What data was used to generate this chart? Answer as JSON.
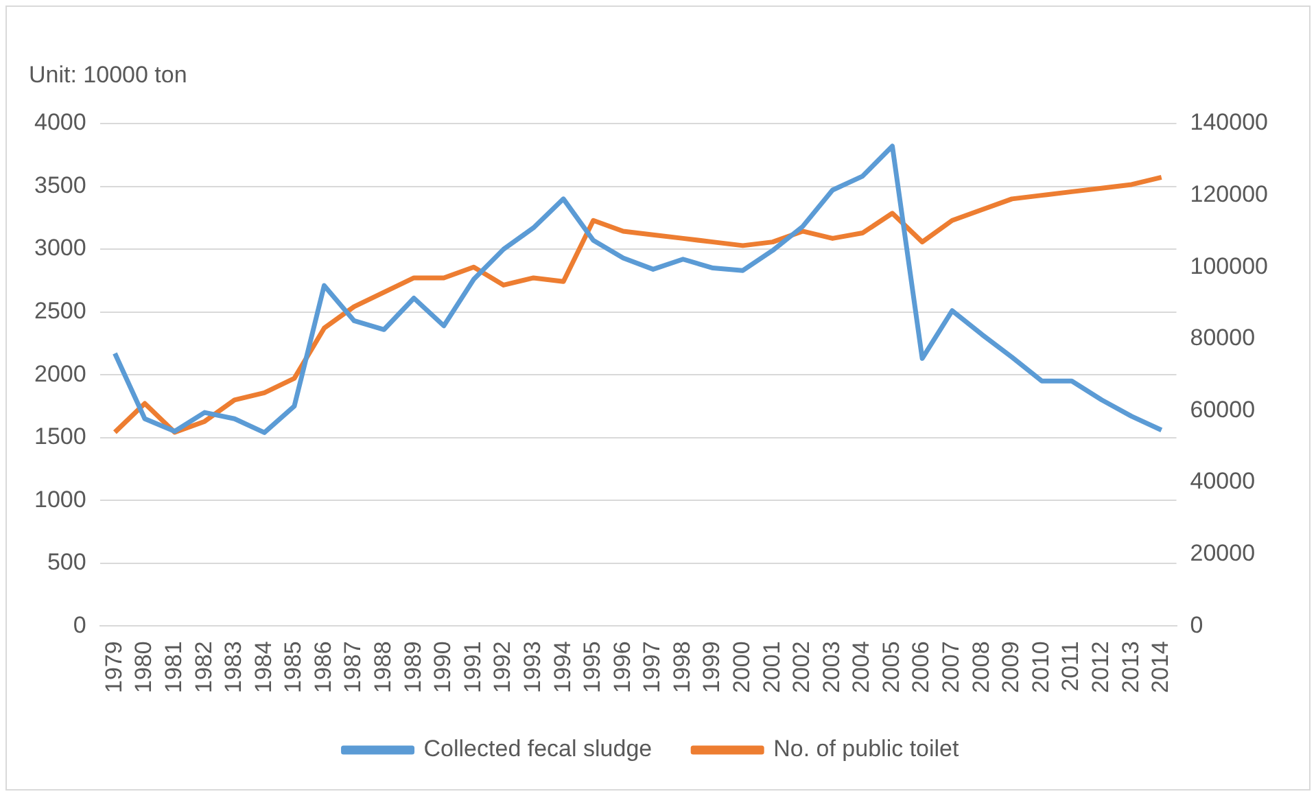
{
  "chart_data": {
    "type": "line",
    "ylabel": "Unit: 10000 ton",
    "categories": [
      "1979",
      "1980",
      "1981",
      "1982",
      "1983",
      "1984",
      "1985",
      "1986",
      "1987",
      "1988",
      "1989",
      "1990",
      "1991",
      "1992",
      "1993",
      "1994",
      "1995",
      "1996",
      "1997",
      "1998",
      "1999",
      "2000",
      "2001",
      "2002",
      "2003",
      "2004",
      "2005",
      "2006",
      "2007",
      "2008",
      "2009",
      "2010",
      "2011",
      "2012",
      "2013",
      "2014"
    ],
    "series": [
      {
        "name": "Collected fecal sludge",
        "color": "#5b9bd5",
        "values": [
          2170,
          1650,
          1550,
          1700,
          1650,
          1540,
          1750,
          2710,
          2430,
          2360,
          2610,
          2390,
          2760,
          3000,
          3170,
          3400,
          3070,
          2930,
          2840,
          2920,
          2850,
          2830,
          2990,
          3180,
          3470,
          3580,
          3820,
          2130,
          2510,
          2320,
          2140,
          1950,
          1950,
          1800,
          1670,
          1560
        ]
      },
      {
        "name": "No. of public toilet",
        "color": "#ed7d31",
        "axis": "y2",
        "values": [
          54000,
          62000,
          54000,
          57000,
          63000,
          65000,
          69000,
          83000,
          89000,
          93000,
          97000,
          97000,
          100000,
          95000,
          97000,
          96000,
          113000,
          110000,
          109000,
          108000,
          107000,
          106000,
          107000,
          110000,
          108000,
          109500,
          115000,
          107000,
          113000,
          116000,
          119000,
          120000,
          121000,
          122000,
          123000,
          125000
        ]
      }
    ],
    "ylim": [
      0,
      4000
    ],
    "yticks": [
      0,
      500,
      1000,
      1500,
      2000,
      2500,
      3000,
      3500,
      4000
    ],
    "y2lim": [
      0,
      140000
    ],
    "y2ticks": [
      0,
      20000,
      40000,
      60000,
      80000,
      100000,
      120000,
      140000
    ],
    "grid": "y",
    "legend": "bottom",
    "marker": "none",
    "line_style": "solid"
  }
}
